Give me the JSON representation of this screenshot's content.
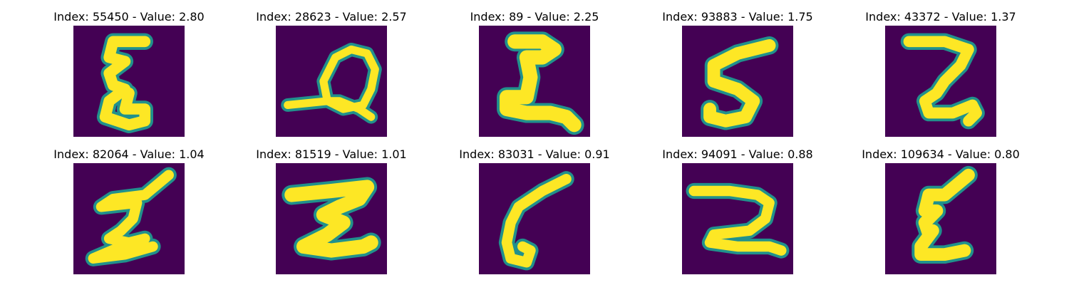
{
  "panels": [
    {
      "index": "55450",
      "value": "2.80",
      "title": "Index: 55450 - Value: 2.80"
    },
    {
      "index": "28623",
      "value": "2.57",
      "title": "Index: 28623 - Value: 2.57"
    },
    {
      "index": "89",
      "value": "2.25",
      "title": "Index: 89 - Value: 2.25"
    },
    {
      "index": "93883",
      "value": "1.75",
      "title": "Index: 93883 - Value: 1.75"
    },
    {
      "index": "43372",
      "value": "1.37",
      "title": "Index: 43372 - Value: 1.37"
    },
    {
      "index": "82064",
      "value": "1.04",
      "title": "Index: 82064 - Value: 1.04"
    },
    {
      "index": "81519",
      "value": "1.01",
      "title": "Index: 81519 - Value: 1.01"
    },
    {
      "index": "83031",
      "value": "0.91",
      "title": "Index: 83031 - Value: 0.91"
    },
    {
      "index": "94091",
      "value": "0.88",
      "title": "Index: 94091 - Value: 0.88"
    },
    {
      "index": "109634",
      "value": "0.80",
      "title": "Index: 109634 - Value: 0.80"
    }
  ],
  "colors": {
    "background": "#440154",
    "ink": "#fde725",
    "edge": "#21918c"
  }
}
